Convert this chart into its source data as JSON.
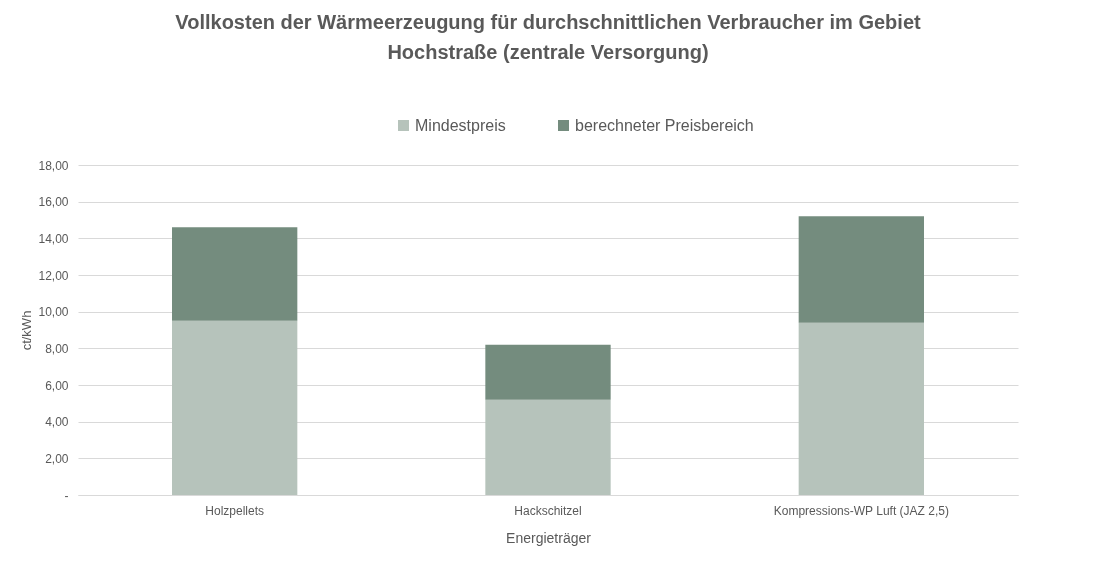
{
  "chart_data": {
    "type": "bar",
    "stacked": true,
    "title": "Vollkosten der Wärmeerzeugung für durchschnittlichen Verbraucher im Gebiet Hochstraße (zentrale Versorgung)",
    "xlabel": "Energieträger",
    "ylabel": "ct/kWh",
    "categories": [
      "Holzpellets",
      "Hackschitzel",
      "Kompressions-WP Luft (JAZ 2,5)"
    ],
    "series": [
      {
        "name": "Mindestpreis",
        "color": "#b6c3bb",
        "values": [
          9.5,
          5.2,
          9.4
        ]
      },
      {
        "name": "berechneter Preisbereich",
        "color": "#748c7e",
        "values": [
          5.1,
          3.0,
          5.8
        ]
      }
    ],
    "ylim": [
      0,
      18
    ],
    "yticks": [
      {
        "value": 0,
        "label": "-"
      },
      {
        "value": 2,
        "label": "2,00"
      },
      {
        "value": 4,
        "label": "4,00"
      },
      {
        "value": 6,
        "label": "6,00"
      },
      {
        "value": 8,
        "label": "8,00"
      },
      {
        "value": 10,
        "label": "10,00"
      },
      {
        "value": 12,
        "label": "12,00"
      },
      {
        "value": 14,
        "label": "14,00"
      },
      {
        "value": 16,
        "label": "16,00"
      },
      {
        "value": 18,
        "label": "18,00"
      }
    ],
    "grid": "y",
    "legend": "top"
  }
}
